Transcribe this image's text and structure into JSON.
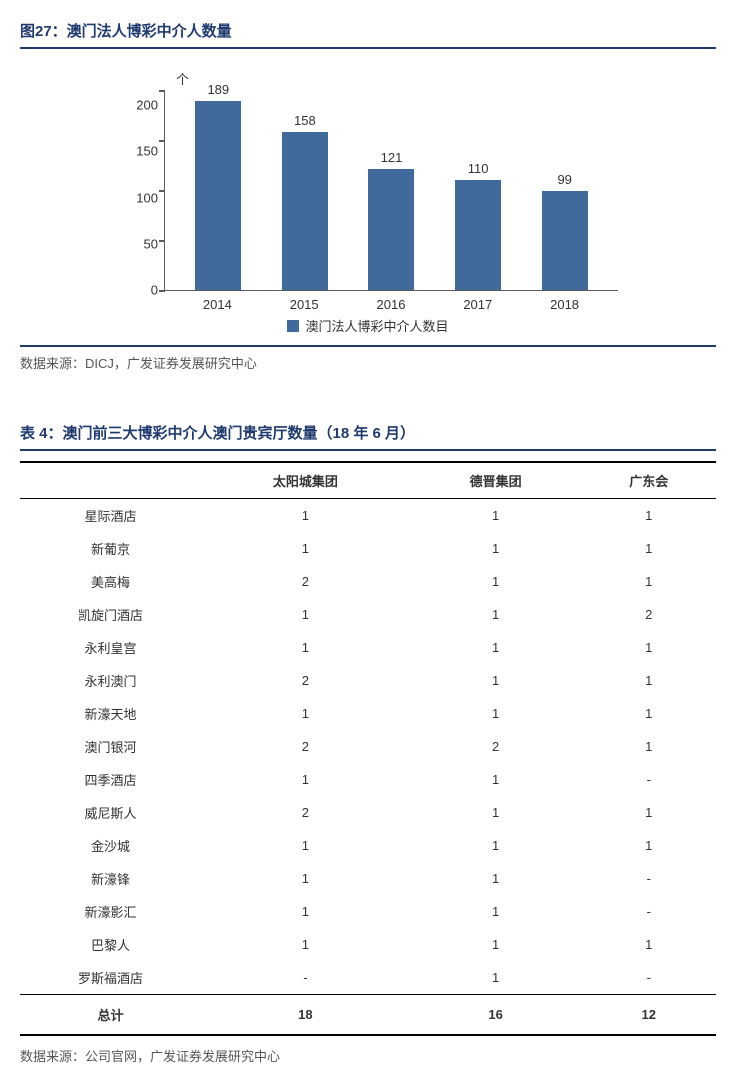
{
  "figure": {
    "title": "图27：澳门法人博彩中介人数量",
    "source": "数据来源：DICJ，广发证券发展研究中心",
    "chart": {
      "type": "bar",
      "y_unit": "个",
      "categories": [
        "2014",
        "2015",
        "2016",
        "2017",
        "2018"
      ],
      "values": [
        189,
        158,
        121,
        110,
        99
      ],
      "value_labels": [
        "189",
        "158",
        "121",
        "110",
        "99"
      ],
      "bar_color": "#40699c",
      "ylim_max": 200,
      "yticks": [
        "200",
        "150",
        "100",
        "50",
        "0"
      ],
      "legend_label": "澳门法人博彩中介人数目",
      "axis_color": "#5b5b5b",
      "label_fontsize": 13
    }
  },
  "table": {
    "title": "表 4：澳门前三大博彩中介人澳门贵宾厅数量（18 年 6 月）",
    "source": "数据来源：公司官网，广发证券发展研究中心",
    "columns": [
      "",
      "太阳城集团",
      "德晋集团",
      "广东会"
    ],
    "rows": [
      [
        "星际酒店",
        "1",
        "1",
        "1"
      ],
      [
        "新葡京",
        "1",
        "1",
        "1"
      ],
      [
        "美高梅",
        "2",
        "1",
        "1"
      ],
      [
        "凯旋门酒店",
        "1",
        "1",
        "2"
      ],
      [
        "永利皇宫",
        "1",
        "1",
        "1"
      ],
      [
        "永利澳门",
        "2",
        "1",
        "1"
      ],
      [
        "新濠天地",
        "1",
        "1",
        "1"
      ],
      [
        "澳门银河",
        "2",
        "2",
        "1"
      ],
      [
        "四季酒店",
        "1",
        "1",
        "-"
      ],
      [
        "威尼斯人",
        "2",
        "1",
        "1"
      ],
      [
        "金沙城",
        "1",
        "1",
        "1"
      ],
      [
        "新濠锋",
        "1",
        "1",
        "-"
      ],
      [
        "新濠影汇",
        "1",
        "1",
        "-"
      ],
      [
        "巴黎人",
        "1",
        "1",
        "1"
      ],
      [
        "罗斯福酒店",
        "-",
        "1",
        "-"
      ]
    ],
    "total_label": "总计",
    "totals": [
      "18",
      "16",
      "12"
    ]
  }
}
